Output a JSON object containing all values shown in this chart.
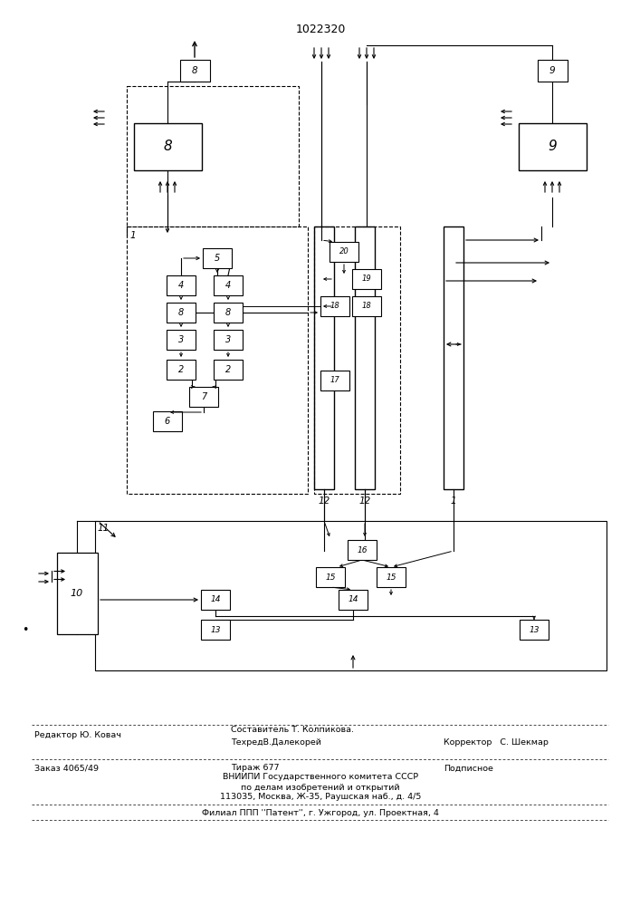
{
  "title": "1022320",
  "bg_color": "#ffffff",
  "footer": {
    "line1_left": "Редактор Ю. Ковач",
    "line1_center_top": "Составитель Т. Колпикова.",
    "line1_center_bot": "ТехредВ.Далекорей",
    "line1_right": "Корректор   С. Шекмар",
    "line2_left": "Заказ 4065/49",
    "line2_center": "Тираж 677",
    "line2_right": "Подписное",
    "line3": "ВНИИПИ Государственного комитета СССР",
    "line4": "по делам изобретений и открытий",
    "line5": "113035, Москва, Ж-35, Раушская наб., д. 4/5",
    "line6": "Филиал ПΠΠ ''Патент'', г. Ужгород, ул. Проектная, 4"
  }
}
